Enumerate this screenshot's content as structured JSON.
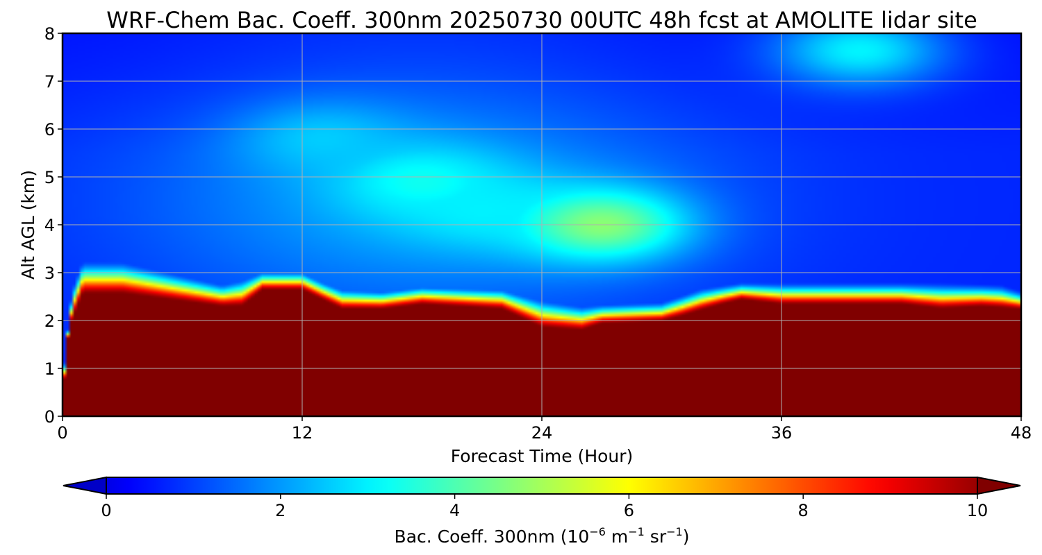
{
  "chart_data": {
    "type": "heatmap",
    "title": "WRF-Chem Bac. Coeff. 300nm  20250730 00UTC 48h fcst at AMOLITE lidar site",
    "xlabel": "Forecast Time (Hour)",
    "ylabel": "Alt AGL (km)",
    "xlim": [
      0,
      48
    ],
    "ylim": [
      0,
      8
    ],
    "xticks": [
      "0",
      "12",
      "24",
      "36",
      "48"
    ],
    "yticks": [
      "0",
      "1",
      "2",
      "3",
      "4",
      "5",
      "6",
      "7",
      "8"
    ],
    "grid": true,
    "colormap": "jet",
    "colorbar": {
      "label_main": "Bac. Coeff. 300nm  (10",
      "exp1": "−6",
      "label_unit1": " m",
      "exp2": "−1",
      "label_unit2": " sr",
      "exp3": "−1",
      "label_close": ")",
      "range": [
        0,
        10
      ],
      "ticks": [
        "0",
        "2",
        "4",
        "6",
        "8",
        "10"
      ],
      "extend": "both"
    },
    "boundary_layer_top_km": {
      "hours": [
        0,
        0.3,
        1,
        3,
        5,
        8,
        9,
        10,
        12,
        13,
        14,
        16,
        18,
        22,
        24,
        26,
        27,
        30,
        31,
        33,
        34,
        36,
        42,
        44,
        46,
        48
      ],
      "values": [
        0.3,
        1.8,
        2.5,
        2.5,
        2.4,
        2.25,
        2.25,
        2.6,
        2.6,
        2.4,
        2.2,
        2.2,
        2.3,
        2.2,
        1.8,
        1.75,
        1.9,
        1.95,
        2.05,
        2.3,
        2.4,
        2.3,
        2.3,
        2.2,
        2.25,
        2.2
      ]
    },
    "elevated_layer_top_km": {
      "hours": [
        0,
        0.5,
        1,
        3,
        6,
        8,
        10,
        12,
        13,
        14,
        16,
        18,
        22,
        24,
        26,
        30,
        32,
        34,
        36,
        40,
        44,
        47,
        48
      ],
      "values": [
        0.5,
        2.4,
        3.0,
        3.0,
        2.7,
        2.5,
        2.75,
        2.75,
        2.55,
        2.4,
        2.35,
        2.45,
        2.4,
        2.2,
        2.05,
        2.1,
        2.4,
        2.5,
        2.5,
        2.5,
        2.5,
        2.45,
        2.3
      ]
    },
    "aerosol_plumes": [
      {
        "hour": 27,
        "alt_km": 4.0,
        "peak": 4.7
      },
      {
        "hour": 40,
        "alt_km": 7.7,
        "peak": 4.2
      },
      {
        "hour": 18,
        "alt_km": 4.9,
        "peak": 3.3
      },
      {
        "hour": 13,
        "alt_km": 5.8,
        "peak": 2.6
      },
      {
        "hour": 21,
        "alt_km": 4.3,
        "peak": 3.0
      }
    ],
    "background_peak_hour": 18
  }
}
